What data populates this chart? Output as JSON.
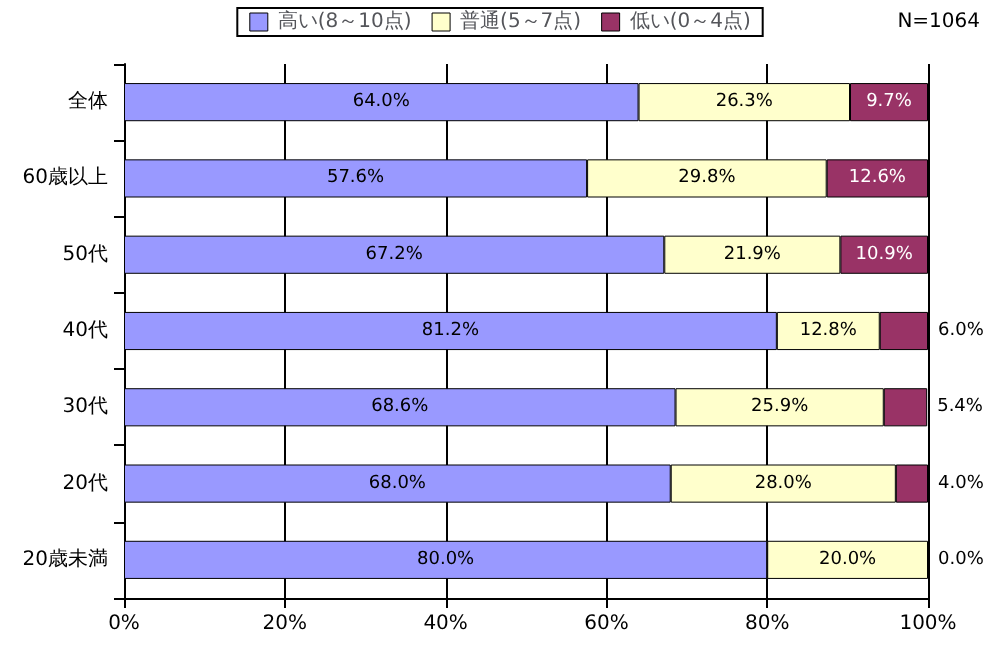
{
  "chart_data": {
    "type": "bar",
    "orientation": "horizontal",
    "stacked": true,
    "categories": [
      "全体",
      "60歳以上",
      "50代",
      "40代",
      "30代",
      "20代",
      "20歳未満"
    ],
    "series": [
      {
        "name": "高い(8～10点)",
        "color": "#9999ff",
        "values": [
          64.0,
          57.6,
          67.2,
          81.2,
          68.6,
          68.0,
          80.0
        ],
        "value_labels": [
          "64.0%",
          "57.6%",
          "67.2%",
          "81.2%",
          "68.6%",
          "68.0%",
          "80.0%"
        ]
      },
      {
        "name": "普通(5～7点)",
        "color": "#ffffcc",
        "values": [
          26.3,
          29.8,
          21.9,
          12.8,
          25.9,
          28.0,
          20.0
        ],
        "value_labels": [
          "26.3%",
          "29.8%",
          "21.9%",
          "12.8%",
          "25.9%",
          "28.0%",
          "20.0%"
        ]
      },
      {
        "name": "低い(0～4点)",
        "color": "#993366",
        "values": [
          9.7,
          12.6,
          10.9,
          6.0,
          5.4,
          4.0,
          0.0
        ],
        "value_labels": [
          "9.7%",
          "12.6%",
          "10.9%",
          "6.0%",
          "5.4%",
          "4.0%",
          "0.0%"
        ]
      }
    ],
    "xlim": [
      0,
      100
    ],
    "xticks": [
      {
        "value": 0,
        "label": "0%"
      },
      {
        "value": 20,
        "label": "20%"
      },
      {
        "value": 40,
        "label": "40%"
      },
      {
        "value": 60,
        "label": "60%"
      },
      {
        "value": 80,
        "label": "80%"
      },
      {
        "value": 100,
        "label": "100%"
      }
    ],
    "grid": "x",
    "legend": "top",
    "annotations": [
      "N=1064"
    ]
  }
}
